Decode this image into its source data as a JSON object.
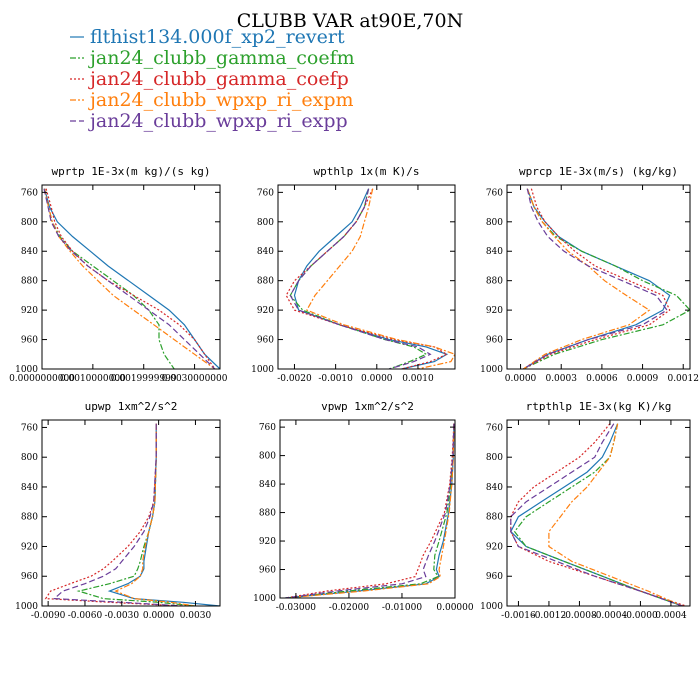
{
  "figure_title": "CLUBB VAR at90E,70N",
  "colors": {
    "flthist134.000f_xp2_revert": "#1f77b4",
    "jan24_clubb_gamma_coefm": "#2ca02c",
    "jan24_clubb_gamma_coefp": "#d62728",
    "jan24_clubb_wpxp_ri_expm": "#ff7f0e",
    "jan24_clubb_wpxp_ri_expp": "#6a3d9a"
  },
  "legend": [
    {
      "name": "flthist134.000f_xp2_revert",
      "color": "#1f77b4",
      "dash": "solid"
    },
    {
      "name": "jan24_clubb_gamma_coefm",
      "color": "#2ca02c",
      "dash": "dashdot"
    },
    {
      "name": "jan24_clubb_gamma_coefp",
      "color": "#d62728",
      "dash": "dot"
    },
    {
      "name": "jan24_clubb_wpxp_ri_expm",
      "color": "#ff7f0e",
      "dash": "dashdot"
    },
    {
      "name": "jan24_clubb_wpxp_ri_expp",
      "color": "#6a3d9a",
      "dash": "dash"
    }
  ],
  "chart_data": [
    {
      "type": "line",
      "title": "wprtp  1E-3x(m kg)/(s kg)",
      "xlim": [
        0,
        0.0035
      ],
      "ylim": [
        750,
        1000
      ],
      "y_reversed": true,
      "xticks": [
        0,
        0.001,
        0.002,
        0.003
      ],
      "xtick_labels": [
        "0.0000000000",
        "0.0010000000",
        "0.0019999999",
        "0.0030000000"
      ],
      "yticks": [
        760,
        800,
        840,
        880,
        920,
        960,
        1000
      ],
      "y": [
        755,
        780,
        800,
        820,
        840,
        860,
        880,
        900,
        920,
        940,
        960,
        980,
        1000
      ],
      "series": [
        {
          "name": "flthist134.000f_xp2_revert",
          "x": [
            5e-05,
            0.00015,
            0.0003,
            0.0006,
            0.00095,
            0.0013,
            0.0017,
            0.0021,
            0.0025,
            0.0028,
            0.003,
            0.0032,
            0.0035
          ]
        },
        {
          "name": "jan24_clubb_gamma_coefm",
          "x": [
            5e-05,
            0.00013,
            0.0002,
            0.00035,
            0.0006,
            0.001,
            0.0014,
            0.0018,
            0.0021,
            0.0023,
            0.0023,
            0.0024,
            0.0026
          ]
        },
        {
          "name": "jan24_clubb_gamma_coefp",
          "x": [
            8e-05,
            0.00018,
            0.00025,
            0.00038,
            0.0006,
            0.0009,
            0.0013,
            0.0018,
            0.0023,
            0.0027,
            0.003,
            0.0032,
            0.0034
          ]
        },
        {
          "name": "jan24_clubb_wpxp_ri_expm",
          "x": [
            5e-05,
            0.00013,
            0.0002,
            0.00033,
            0.00055,
            0.0008,
            0.0011,
            0.0014,
            0.0018,
            0.0022,
            0.0026,
            0.003,
            0.0034
          ]
        },
        {
          "name": "jan24_clubb_wpxp_ri_expp",
          "x": [
            4e-05,
            0.00012,
            0.00018,
            0.00033,
            0.00058,
            0.0009,
            0.0013,
            0.0017,
            0.0021,
            0.0025,
            0.0028,
            0.0031,
            0.0034
          ]
        }
      ]
    },
    {
      "type": "line",
      "title": "wpthlp  1x(m K)/s",
      "xlim": [
        -0.0024,
        0.0019
      ],
      "ylim": [
        750,
        1000
      ],
      "y_reversed": true,
      "xticks": [
        -0.002,
        -0.001,
        0,
        0.001
      ],
      "xtick_labels": [
        "-0.0020",
        "-0.0010",
        "0.0000",
        "0.0010"
      ],
      "yticks": [
        760,
        800,
        840,
        880,
        920,
        960,
        1000
      ],
      "y": [
        755,
        780,
        800,
        820,
        840,
        860,
        880,
        900,
        920,
        940,
        960,
        970,
        980,
        990,
        1000
      ],
      "series": [
        {
          "name": "flthist134.000f_xp2_revert",
          "x": [
            -0.0002,
            -0.0004,
            -0.0006,
            -0.001,
            -0.0014,
            -0.0017,
            -0.0019,
            -0.002,
            -0.0019,
            -0.0009,
            0.0003,
            0.0012,
            0.0017,
            0.0014,
            0.0006
          ]
        },
        {
          "name": "jan24_clubb_gamma_coefm",
          "x": [
            -0.0002,
            -0.0003,
            -0.0005,
            -0.0008,
            -0.0012,
            -0.0016,
            -0.0019,
            -0.0021,
            -0.0018,
            -0.0009,
            0.0002,
            0.0009,
            0.0012,
            0.0008,
            0.0003
          ]
        },
        {
          "name": "jan24_clubb_gamma_coefp",
          "x": [
            -0.0001,
            -0.0003,
            -0.0005,
            -0.0008,
            -0.0012,
            -0.0016,
            -0.002,
            -0.0022,
            -0.002,
            -0.0009,
            0.0004,
            0.0014,
            0.0017,
            0.0013,
            0.0006
          ]
        },
        {
          "name": "jan24_clubb_wpxp_ri_expm",
          "x": [
            -0.0001,
            -0.0002,
            -0.0003,
            -0.0004,
            -0.0006,
            -0.0009,
            -0.0012,
            -0.0015,
            -0.0017,
            -0.0008,
            0.0005,
            0.0014,
            0.0019,
            0.0018,
            0.001
          ]
        },
        {
          "name": "jan24_clubb_wpxp_ri_expp",
          "x": [
            -0.0002,
            -0.0003,
            -0.0005,
            -0.0008,
            -0.0012,
            -0.0016,
            -0.0019,
            -0.0021,
            -0.0019,
            -0.0009,
            0.0002,
            0.001,
            0.0013,
            0.0009,
            0.0003
          ]
        }
      ]
    },
    {
      "type": "line",
      "title": "wprcp  1E-3x(m/s) (kg/kg)",
      "xlim": [
        -0.0001,
        0.00125
      ],
      "ylim": [
        750,
        1000
      ],
      "y_reversed": true,
      "xticks": [
        0,
        0.0003,
        0.0006,
        0.0009,
        0.0012
      ],
      "xtick_labels": [
        "0.0000",
        "0.0003",
        "0.0006",
        "0.0009",
        "0.0012"
      ],
      "yticks": [
        760,
        800,
        840,
        880,
        920,
        960,
        1000
      ],
      "y": [
        755,
        780,
        800,
        820,
        840,
        860,
        880,
        900,
        920,
        940,
        960,
        980,
        1000
      ],
      "series": [
        {
          "name": "flthist134.000f_xp2_revert",
          "x": [
            5e-05,
            0.0001,
            0.00018,
            0.00028,
            0.00045,
            0.0007,
            0.00095,
            0.0011,
            0.00105,
            0.00085,
            0.0005,
            0.0002,
            2e-05
          ]
        },
        {
          "name": "jan24_clubb_gamma_coefm",
          "x": [
            5e-05,
            0.0001,
            0.00016,
            0.00026,
            0.00045,
            0.0007,
            0.0009,
            0.00115,
            0.00125,
            0.00105,
            0.0006,
            0.00025,
            2e-05
          ]
        },
        {
          "name": "jan24_clubb_gamma_coefp",
          "x": [
            8e-05,
            0.00012,
            0.00018,
            0.00028,
            0.0004,
            0.00055,
            0.0008,
            0.00105,
            0.0011,
            0.00095,
            0.00055,
            0.00022,
            2e-05
          ]
        },
        {
          "name": "jan24_clubb_wpxp_ri_expm",
          "x": [
            5e-05,
            0.0001,
            0.00016,
            0.00025,
            0.00035,
            0.0005,
            0.00062,
            0.00078,
            0.00095,
            0.0008,
            0.00045,
            0.00018,
            2e-05
          ]
        },
        {
          "name": "jan24_clubb_wpxp_ri_expp",
          "x": [
            5e-05,
            8e-05,
            0.00013,
            0.0002,
            0.00032,
            0.0005,
            0.00075,
            0.001,
            0.00108,
            0.0009,
            0.0005,
            0.0002,
            2e-05
          ]
        }
      ]
    },
    {
      "type": "line",
      "title": "upwp  1xm^2/s^2",
      "xlim": [
        -0.0095,
        0.005
      ],
      "ylim": [
        750,
        1000
      ],
      "y_reversed": true,
      "xticks": [
        -0.009,
        -0.006,
        -0.003,
        0,
        0.003
      ],
      "xtick_labels": [
        "-0.0090",
        "-0.0060",
        "-0.0030",
        "0.0000",
        "0.0030"
      ],
      "yticks": [
        760,
        800,
        840,
        880,
        920,
        960,
        1000
      ],
      "y": [
        755,
        800,
        860,
        880,
        900,
        920,
        940,
        950,
        960,
        970,
        980,
        990,
        995,
        1000
      ],
      "series": [
        {
          "name": "flthist134.000f_xp2_revert",
          "x": [
            -0.0002,
            -0.0002,
            -0.0003,
            -0.0005,
            -0.0008,
            -0.001,
            -0.0012,
            -0.0012,
            -0.0015,
            -0.0025,
            -0.004,
            -0.002,
            0.002,
            0.005
          ]
        },
        {
          "name": "jan24_clubb_gamma_coefm",
          "x": [
            -0.0002,
            -0.0002,
            -0.0003,
            -0.0005,
            -0.0008,
            -0.0012,
            -0.0015,
            -0.0017,
            -0.002,
            -0.004,
            -0.0065,
            -0.0045,
            0.0,
            0.003
          ]
        },
        {
          "name": "jan24_clubb_gamma_coefp",
          "x": [
            -0.0002,
            -0.0002,
            -0.0004,
            -0.0008,
            -0.0015,
            -0.0025,
            -0.0038,
            -0.0045,
            -0.0055,
            -0.0072,
            -0.0088,
            -0.0092,
            -0.004,
            0.002
          ]
        },
        {
          "name": "jan24_clubb_wpxp_ri_expm",
          "x": [
            -0.0002,
            -0.0002,
            -0.0003,
            -0.0005,
            -0.0008,
            -0.0011,
            -0.0013,
            -0.0013,
            -0.0015,
            -0.0022,
            -0.0035,
            -0.002,
            0.001,
            0.003
          ]
        },
        {
          "name": "jan24_clubb_wpxp_ri_expp",
          "x": [
            -0.0002,
            -0.0002,
            -0.0004,
            -0.0007,
            -0.0012,
            -0.002,
            -0.003,
            -0.0035,
            -0.0045,
            -0.006,
            -0.0078,
            -0.0085,
            -0.003,
            0.002
          ]
        }
      ]
    },
    {
      "type": "line",
      "title": "vpwp  1xm^2/s^2",
      "xlim": [
        -0.033,
        0.0
      ],
      "ylim": [
        750,
        1000
      ],
      "y_reversed": true,
      "xticks": [
        -0.03,
        -0.02,
        -0.01,
        0
      ],
      "xtick_labels": [
        "-0.03000",
        "-0.02000",
        "-0.01000",
        "0.00000"
      ],
      "yticks": [
        760,
        800,
        840,
        880,
        920,
        960,
        1000
      ],
      "y": [
        755,
        800,
        840,
        880,
        920,
        940,
        960,
        970,
        980,
        990,
        1000
      ],
      "series": [
        {
          "name": "flthist134.000f_xp2_revert",
          "x": [
            -0.0002,
            -0.0003,
            -0.0006,
            -0.0012,
            -0.0022,
            -0.003,
            -0.0035,
            -0.003,
            -0.0055,
            -0.018,
            -0.032
          ]
        },
        {
          "name": "jan24_clubb_gamma_coefm",
          "x": [
            -0.0002,
            -0.0004,
            -0.0008,
            -0.0015,
            -0.003,
            -0.0038,
            -0.004,
            -0.0032,
            -0.0065,
            -0.02,
            -0.032
          ]
        },
        {
          "name": "jan24_clubb_gamma_coefp",
          "x": [
            -0.0002,
            -0.0005,
            -0.001,
            -0.002,
            -0.0045,
            -0.006,
            -0.007,
            -0.0075,
            -0.013,
            -0.024,
            -0.032
          ]
        },
        {
          "name": "jan24_clubb_wpxp_ri_expm",
          "x": [
            -0.0002,
            -0.0003,
            -0.0006,
            -0.0011,
            -0.002,
            -0.0025,
            -0.003,
            -0.0028,
            -0.005,
            -0.017,
            -0.032
          ]
        },
        {
          "name": "jan24_clubb_wpxp_ri_expp",
          "x": [
            -0.0002,
            -0.0004,
            -0.0009,
            -0.0018,
            -0.0038,
            -0.005,
            -0.006,
            -0.0055,
            -0.01,
            -0.022,
            -0.032
          ]
        }
      ]
    },
    {
      "type": "line",
      "title": "rtpthlp  1E-3x(kg K)/kg",
      "xlim": [
        -0.00175,
        0.00065
      ],
      "ylim": [
        750,
        1000
      ],
      "y_reversed": true,
      "xticks": [
        -0.0016,
        -0.0012,
        -0.0008,
        -0.0004,
        0,
        0.0004
      ],
      "xtick_labels": [
        "-0.0016",
        "-0.0012",
        "-0.0008",
        "-0.0004",
        "-0.0000",
        "0.0004"
      ],
      "yticks": [
        760,
        800,
        840,
        880,
        920,
        960,
        1000
      ],
      "y": [
        755,
        780,
        800,
        820,
        840,
        860,
        880,
        900,
        920,
        940,
        960,
        980,
        1000
      ],
      "series": [
        {
          "name": "flthist134.000f_xp2_revert",
          "x": [
            -0.0003,
            -0.0004,
            -0.0005,
            -0.0007,
            -0.001,
            -0.0013,
            -0.0016,
            -0.0017,
            -0.0015,
            -0.001,
            -0.0005,
            0.0,
            0.00055
          ]
        },
        {
          "name": "jan24_clubb_gamma_coefm",
          "x": [
            -0.0003,
            -0.00035,
            -0.0004,
            -0.0006,
            -0.0009,
            -0.0012,
            -0.0015,
            -0.00165,
            -0.0015,
            -0.001,
            -0.0005,
            0.0,
            0.00055
          ]
        },
        {
          "name": "jan24_clubb_gamma_coefp",
          "x": [
            -0.0004,
            -0.0006,
            -0.0008,
            -0.0011,
            -0.0014,
            -0.0016,
            -0.0017,
            -0.0017,
            -0.0016,
            -0.0012,
            -0.0006,
            0.0,
            0.0006
          ]
        },
        {
          "name": "jan24_clubb_wpxp_ri_expm",
          "x": [
            -0.0003,
            -0.00035,
            -0.0004,
            -0.00055,
            -0.0007,
            -0.0009,
            -0.00105,
            -0.0012,
            -0.0012,
            -0.0009,
            -0.0004,
            0.0001,
            0.00055
          ]
        },
        {
          "name": "jan24_clubb_wpxp_ri_expp",
          "x": [
            -0.00035,
            -0.0005,
            -0.0006,
            -0.0009,
            -0.0012,
            -0.0015,
            -0.0017,
            -0.0017,
            -0.0016,
            -0.0011,
            -0.0006,
            0.0,
            0.00055
          ]
        }
      ]
    }
  ]
}
